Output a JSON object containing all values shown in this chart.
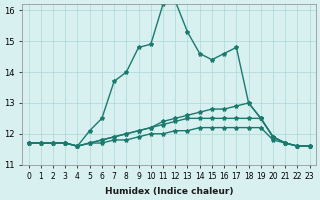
{
  "xlabel": "Humidex (Indice chaleur)",
  "ylabel": "",
  "xlim": [
    -0.5,
    23.5
  ],
  "ylim": [
    11,
    16.2
  ],
  "yticks": [
    11,
    12,
    13,
    14,
    15,
    16
  ],
  "xticks": [
    0,
    1,
    2,
    3,
    4,
    5,
    6,
    7,
    8,
    9,
    10,
    11,
    12,
    13,
    14,
    15,
    16,
    17,
    18,
    19,
    20,
    21,
    22,
    23
  ],
  "bg_color": "#d8f0f0",
  "grid_color": "#aad8d8",
  "line_color": "#1a7a6e",
  "series": [
    [
      11.7,
      11.7,
      11.7,
      11.7,
      11.6,
      12.1,
      12.5,
      13.7,
      14.0,
      14.8,
      14.9,
      16.2,
      16.3,
      15.3,
      14.6,
      14.4,
      14.6,
      14.8,
      13.0,
      12.5,
      11.9,
      11.7,
      11.6,
      11.6
    ],
    [
      11.7,
      11.7,
      11.7,
      11.7,
      11.6,
      11.7,
      11.8,
      11.9,
      12.0,
      12.1,
      12.2,
      12.4,
      12.5,
      12.6,
      12.7,
      12.8,
      12.8,
      12.9,
      13.0,
      12.5,
      11.9,
      11.7,
      11.6,
      11.6
    ],
    [
      11.7,
      11.7,
      11.7,
      11.7,
      11.6,
      11.7,
      11.8,
      11.9,
      12.0,
      12.1,
      12.2,
      12.3,
      12.4,
      12.5,
      12.5,
      12.5,
      12.5,
      12.5,
      12.5,
      12.5,
      11.9,
      11.7,
      11.6,
      11.6
    ],
    [
      11.7,
      11.7,
      11.7,
      11.7,
      11.6,
      11.7,
      11.7,
      11.8,
      11.8,
      11.9,
      12.0,
      12.0,
      12.1,
      12.1,
      12.2,
      12.2,
      12.2,
      12.2,
      12.2,
      12.2,
      11.8,
      11.7,
      11.6,
      11.6
    ]
  ]
}
